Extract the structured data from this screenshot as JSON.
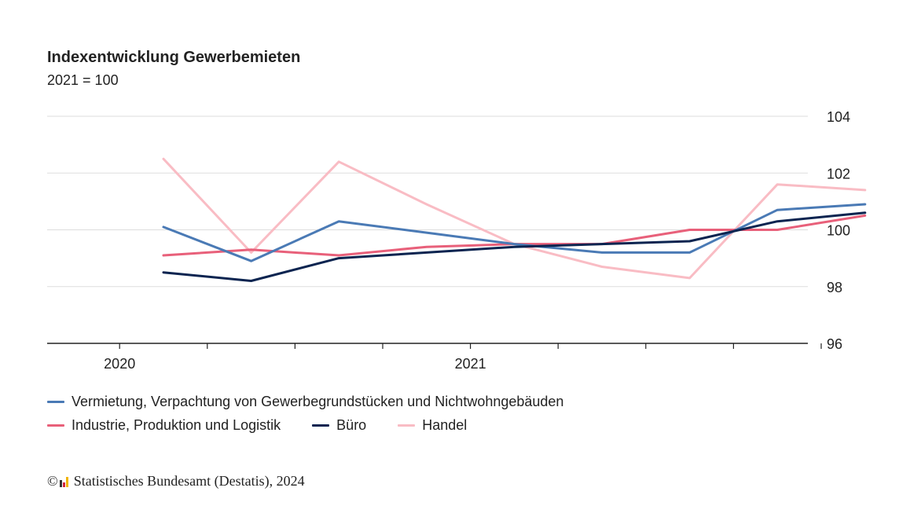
{
  "title": "Indexentwicklung Gewerbemieten",
  "subtitle": "2021 = 100",
  "footer": {
    "copyright": "©",
    "source": "Statistisches Bundesamt (Destatis), 2024"
  },
  "colors": {
    "vermietung": "#4a7ab5",
    "industrie": "#e8607a",
    "buero": "#0b2450",
    "handel": "#f9bcc4",
    "grid": "#dddddd",
    "axis": "#222222"
  },
  "chart_data": {
    "type": "line",
    "title": "Indexentwicklung Gewerbemieten",
    "subtitle": "2021 = 100",
    "x_tick_labels": [
      "2020",
      "2021"
    ],
    "x": [
      "2020-Q2",
      "2020-Q3",
      "2020-Q4",
      "2021-Q1",
      "2021-Q2",
      "2021-Q3",
      "2021-Q4",
      "2022-Q1",
      "2022-Q2"
    ],
    "ylim": [
      96,
      104
    ],
    "y_ticks": [
      96,
      98,
      100,
      102,
      104
    ],
    "grid": true,
    "y_axis_position": "right",
    "legend_position": "bottom",
    "series": [
      {
        "key": "vermietung",
        "name": "Vermietung, Verpachtung von Gewerbegrundstücken und Nichtwohngebäuden",
        "values": [
          100.1,
          98.9,
          100.3,
          99.9,
          99.5,
          99.2,
          99.2,
          100.7,
          100.9
        ]
      },
      {
        "key": "industrie",
        "name": "Industrie, Produktion und Logistik",
        "values": [
          99.1,
          99.3,
          99.1,
          99.4,
          99.5,
          99.5,
          100.0,
          100.0,
          100.5
        ]
      },
      {
        "key": "buero",
        "name": "Büro",
        "values": [
          98.5,
          98.2,
          99.0,
          99.2,
          99.4,
          99.5,
          99.6,
          100.3,
          100.6
        ]
      },
      {
        "key": "handel",
        "name": "Handel",
        "values": [
          102.5,
          99.2,
          102.4,
          100.9,
          99.5,
          98.7,
          98.3,
          101.6,
          101.4
        ]
      }
    ]
  }
}
